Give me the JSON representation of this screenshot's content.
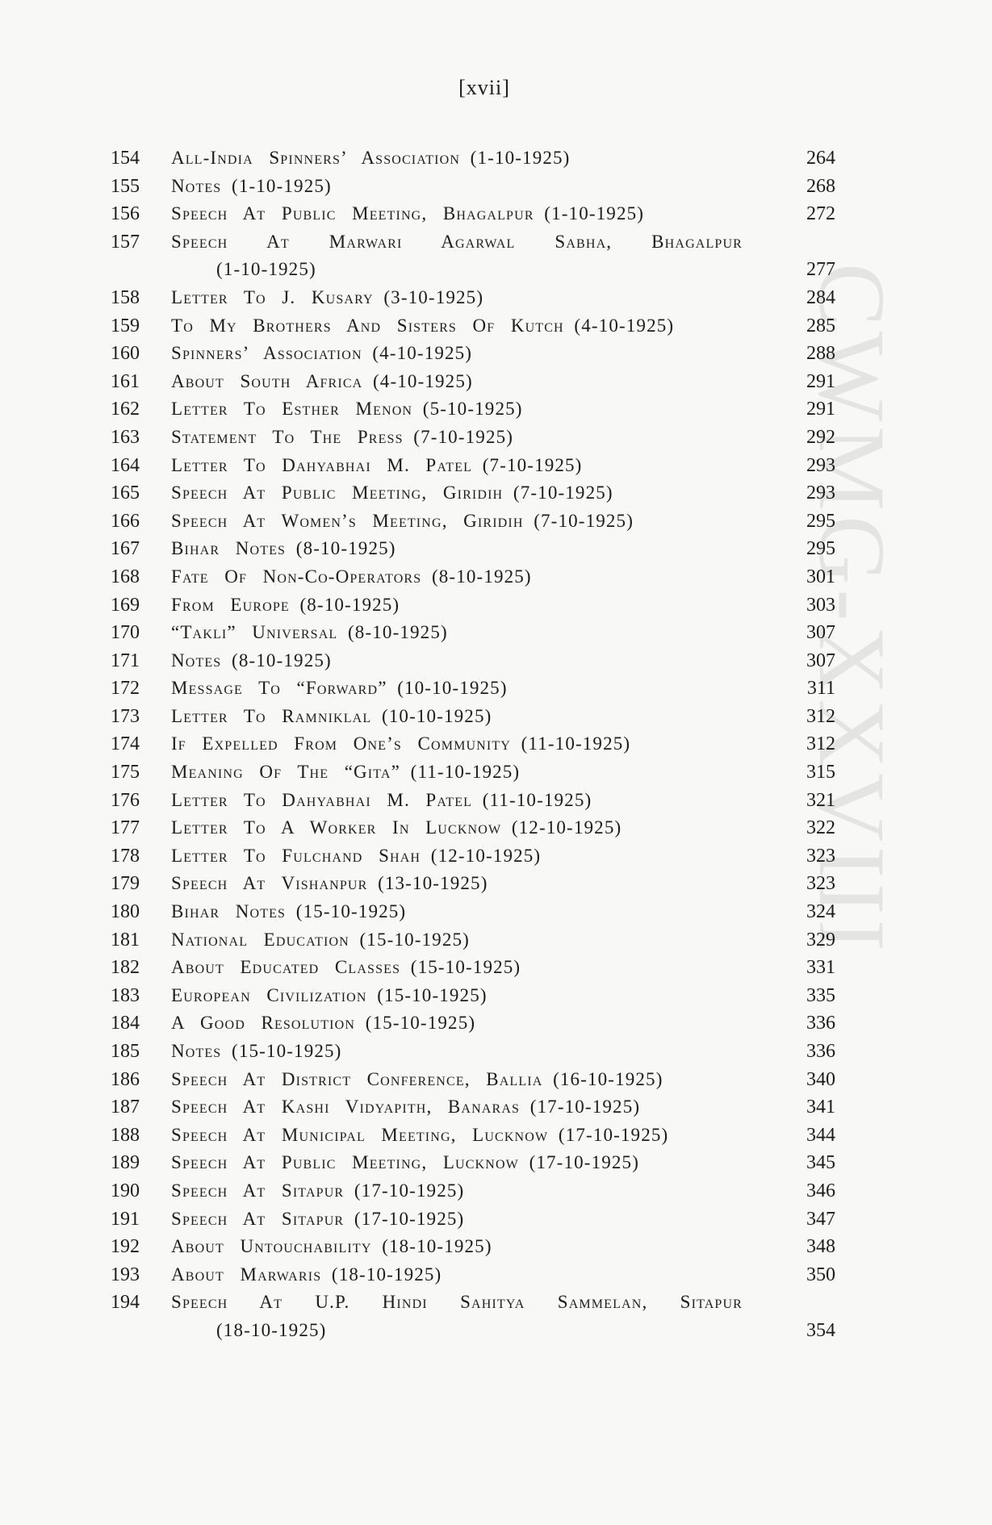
{
  "page": {
    "header": "[xvii]",
    "watermark": "CWMG-XXVIII",
    "text_color": "#1c1c1c",
    "background_color": "#f8f8f6",
    "watermark_color": "#e4e4e3"
  },
  "toc": {
    "entries": [
      {
        "no": "154",
        "title": "All-India Spinners’ Association",
        "date": "(1-10-1925)",
        "page": "264"
      },
      {
        "no": "155",
        "title": "Notes",
        "date": "(1-10-1925)",
        "page": "268"
      },
      {
        "no": "156",
        "title": "Speech At Public Meeting, Bhagalpur",
        "date": "(1-10-1925)",
        "page": "272"
      },
      {
        "no": "157",
        "title": "Speech At Marwari Agarwal Sabha, Bhagalpur",
        "date": "(1-10-1925)",
        "page": "277",
        "wrap": true
      },
      {
        "no": "158",
        "title": "Letter To J. Kusary",
        "date": "(3-10-1925)",
        "page": "284"
      },
      {
        "no": "159",
        "title": "To My Brothers And Sisters Of Kutch",
        "date": "(4-10-1925)",
        "page": "285"
      },
      {
        "no": "160",
        "title": "Spinners’ Association",
        "date": "(4-10-1925)",
        "page": "288"
      },
      {
        "no": "161",
        "title": "About South Africa",
        "date": "(4-10-1925)",
        "page": "291"
      },
      {
        "no": "162",
        "title": "Letter To Esther Menon",
        "date": "(5-10-1925)",
        "page": "291"
      },
      {
        "no": "163",
        "title": "Statement To The Press",
        "date": "(7-10-1925)",
        "page": "292"
      },
      {
        "no": "164",
        "title": "Letter To Dahyabhai M. Patel",
        "date": "(7-10-1925)",
        "page": "293"
      },
      {
        "no": "165",
        "title": "Speech At Public Meeting, Giridih",
        "date": "(7-10-1925)",
        "page": "293"
      },
      {
        "no": "166",
        "title": "Speech At Women’s Meeting, Giridih",
        "date": "(7-10-1925)",
        "page": "295"
      },
      {
        "no": "167",
        "title": "Bihar Notes",
        "date": "(8-10-1925)",
        "page": "295"
      },
      {
        "no": "168",
        "title": "Fate Of Non-Co-Operators",
        "date": "(8-10-1925)",
        "page": "301"
      },
      {
        "no": "169",
        "title": "From Europe",
        "date": "(8-10-1925)",
        "page": "303"
      },
      {
        "no": "170",
        "title": "“Takli” Universal",
        "date": "(8-10-1925)",
        "page": "307"
      },
      {
        "no": "171",
        "title": "Notes",
        "date": "(8-10-1925)",
        "page": "307"
      },
      {
        "no": "172",
        "title": "Message To “Forward”",
        "date": "(10-10-1925)",
        "page": "311"
      },
      {
        "no": "173",
        "title": "Letter To Ramniklal",
        "date": "(10-10-1925)",
        "page": "312"
      },
      {
        "no": "174",
        "title": "If Expelled From One’s Community",
        "date": "(11-10-1925)",
        "page": "312"
      },
      {
        "no": "175",
        "title": "Meaning Of The “Gita”",
        "date": "(11-10-1925)",
        "page": "315"
      },
      {
        "no": "176",
        "title": "Letter To Dahyabhai M. Patel",
        "date": "(11-10-1925)",
        "page": "321"
      },
      {
        "no": "177",
        "title": "Letter To A Worker In Lucknow",
        "date": "(12-10-1925)",
        "page": "322"
      },
      {
        "no": "178",
        "title": "Letter To Fulchand Shah",
        "date": "(12-10-1925)",
        "page": "323"
      },
      {
        "no": "179",
        "title": "Speech At Vishanpur",
        "date": "(13-10-1925)",
        "page": "323"
      },
      {
        "no": "180",
        "title": "Bihar Notes",
        "date": "(15-10-1925)",
        "page": "324"
      },
      {
        "no": "181",
        "title": "National Education",
        "date": "(15-10-1925)",
        "page": "329"
      },
      {
        "no": "182",
        "title": "About Educated Classes",
        "date": "(15-10-1925)",
        "page": "331"
      },
      {
        "no": "183",
        "title": "European Civilization",
        "date": "(15-10-1925)",
        "page": "335"
      },
      {
        "no": "184",
        "title": "A Good Resolution",
        "date": "(15-10-1925)",
        "page": "336"
      },
      {
        "no": "185",
        "title": "Notes",
        "date": "(15-10-1925)",
        "page": "336"
      },
      {
        "no": "186",
        "title": "Speech At District Conference, Ballia",
        "date": "(16-10-1925)",
        "page": "340"
      },
      {
        "no": "187",
        "title": "Speech At Kashi Vidyapith, Banaras",
        "date": "(17-10-1925)",
        "page": "341"
      },
      {
        "no": "188",
        "title": "Speech At Municipal Meeting, Lucknow",
        "date": "(17-10-1925)",
        "page": "344"
      },
      {
        "no": "189",
        "title": "Speech At Public Meeting, Lucknow",
        "date": "(17-10-1925)",
        "page": "345"
      },
      {
        "no": "190",
        "title": "Speech At Sitapur",
        "date": "(17-10-1925)",
        "page": "346"
      },
      {
        "no": "191",
        "title": "Speech At Sitapur",
        "date": "(17-10-1925)",
        "page": "347"
      },
      {
        "no": "192",
        "title": "About Untouchability",
        "date": "(18-10-1925)",
        "page": "348"
      },
      {
        "no": "193",
        "title": "About Marwaris",
        "date": "(18-10-1925)",
        "page": "350"
      },
      {
        "no": "194",
        "title": "Speech At U.P. Hindi Sahitya Sammelan, Sitapur",
        "date": "(18-10-1925)",
        "page": "354",
        "wrap": true
      }
    ]
  }
}
